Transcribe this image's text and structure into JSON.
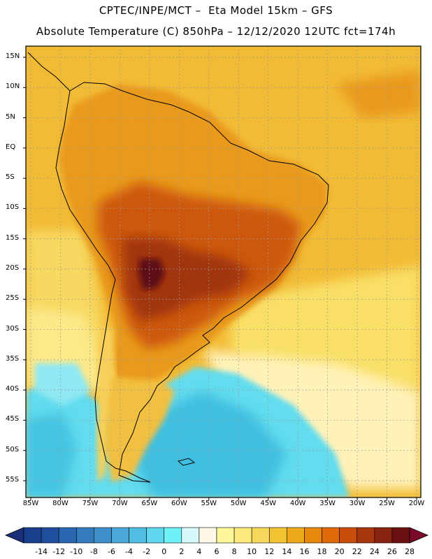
{
  "title": {
    "line1": "CPTEC/INPE/MCT –  Eta Model 15km – GFS",
    "line2": "Absolute Temperature (C) 850hPa – 12/12/2020 12UTC fct=174h"
  },
  "map": {
    "region": "South America",
    "lat_labels": [
      "15N",
      "10N",
      "5N",
      "EQ",
      "5S",
      "10S",
      "15S",
      "20S",
      "25S",
      "30S",
      "35S",
      "40S",
      "45S",
      "50S",
      "55S"
    ],
    "lon_labels": [
      "85W",
      "80W",
      "75W",
      "70W",
      "65W",
      "60W",
      "55W",
      "50W",
      "45W",
      "40W",
      "35W",
      "30W",
      "25W",
      "20W"
    ],
    "lat_values": [
      15,
      10,
      5,
      0,
      -5,
      -10,
      -15,
      -20,
      -25,
      -30,
      -35,
      -40,
      -45,
      -50,
      -55
    ],
    "lon_values": [
      -85,
      -80,
      -75,
      -70,
      -65,
      -60,
      -55,
      -50,
      -45,
      -40,
      -35,
      -30,
      -25,
      -20
    ]
  },
  "colorbar": {
    "labels": [
      "-14",
      "-12",
      "-10",
      "-8",
      "-6",
      "-4",
      "-2",
      "0",
      "2",
      "4",
      "6",
      "8",
      "10",
      "12",
      "14",
      "16",
      "18",
      "20",
      "22",
      "24",
      "26",
      "28"
    ],
    "colors": [
      "#1a3f8c",
      "#1f4f9c",
      "#2b66b0",
      "#347bbd",
      "#3d90c9",
      "#4aa7d8",
      "#52bde3",
      "#5ed6ee",
      "#6ef2f7",
      "#d6f7fb",
      "#fff8e6",
      "#fdf79a",
      "#fbe97c",
      "#f7d65c",
      "#f1c232",
      "#eeaa1a",
      "#e8890e",
      "#e06a0a",
      "#c94d0a",
      "#a8360c",
      "#892410",
      "#6a1010"
    ],
    "under_color": "#1a2f7a",
    "over_color": "#7a0a2a"
  },
  "colors": {
    "ocean_warm": "#f3c43a",
    "ocean_mid": "#f9e06a",
    "ocean_cool": "#fff3c8",
    "ocean_cold": "#6ee3f0",
    "ocean_colder": "#3fc0df",
    "land_hot": "#c24a0c",
    "land_hotter": "#8c260c",
    "land_hottest": "#5e0c10",
    "land_warm": "#e79a1a"
  }
}
